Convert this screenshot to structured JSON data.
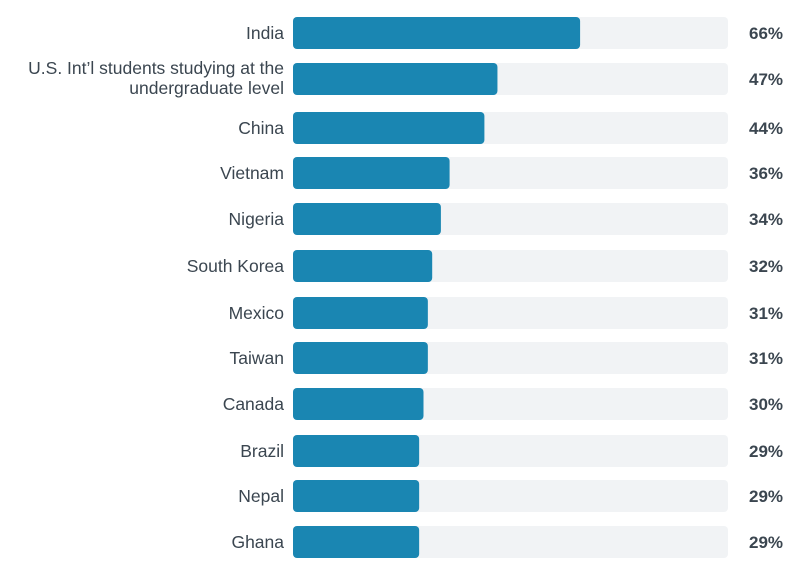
{
  "chart_data": {
    "type": "bar",
    "orientation": "horizontal",
    "categories": [
      "India",
      "U.S. Int’l students studying at the undergraduate level",
      "China",
      "Vietnam",
      "Nigeria",
      "South Korea",
      "Mexico",
      "Taiwan",
      "Canada",
      "Brazil",
      "Nepal",
      "Ghana"
    ],
    "values": [
      66,
      47,
      44,
      36,
      34,
      32,
      31,
      31,
      30,
      29,
      29,
      29
    ],
    "value_labels": [
      "66%",
      "47%",
      "44%",
      "36%",
      "34%",
      "32%",
      "31%",
      "31%",
      "30%",
      "29%",
      "29%",
      "29%"
    ],
    "xlim": [
      0,
      100
    ],
    "grid": false,
    "legend": "none",
    "colors": {
      "bar": "#1a86b2",
      "track": "#f1f3f5",
      "text": "#3b4650"
    }
  }
}
